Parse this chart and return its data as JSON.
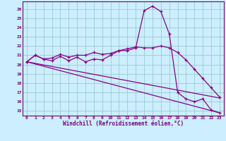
{
  "xlabel": "Windchill (Refroidissement éolien,°C)",
  "bg_color": "#cceeff",
  "grid_color": "#99cccc",
  "line_color": "#880088",
  "xlim": [
    -0.5,
    23.5
  ],
  "ylim": [
    14.5,
    26.8
  ],
  "xtick_labels": [
    "0",
    "1",
    "2",
    "3",
    "4",
    "5",
    "6",
    "7",
    "8",
    "9",
    "10",
    "11",
    "12",
    "13",
    "14",
    "15",
    "16",
    "17",
    "18",
    "19",
    "20",
    "21",
    "22",
    "23"
  ],
  "ytick_labels": [
    "15",
    "16",
    "17",
    "18",
    "19",
    "20",
    "21",
    "22",
    "23",
    "24",
    "25",
    "26"
  ],
  "curve1_x": [
    0,
    1,
    2,
    3,
    4,
    5,
    6,
    7,
    8,
    9,
    10,
    11,
    12,
    13,
    14,
    15,
    16,
    17,
    18,
    19,
    20,
    21,
    22,
    23
  ],
  "curve1_y": [
    20.3,
    21.0,
    20.6,
    20.4,
    20.9,
    20.4,
    20.8,
    20.3,
    20.6,
    20.5,
    21.0,
    21.5,
    21.5,
    21.8,
    25.8,
    26.3,
    25.7,
    23.3,
    17.0,
    16.3,
    16.0,
    16.3,
    15.1,
    14.8
  ],
  "curve2_x": [
    0,
    1,
    2,
    3,
    4,
    5,
    6,
    7,
    8,
    9,
    10,
    11,
    12,
    13,
    14,
    15,
    16,
    17,
    18,
    19,
    20,
    21,
    22,
    23
  ],
  "curve2_y": [
    20.3,
    21.0,
    20.6,
    20.7,
    21.1,
    20.8,
    21.0,
    21.0,
    21.3,
    21.1,
    21.2,
    21.5,
    21.7,
    21.9,
    21.8,
    21.8,
    22.0,
    21.8,
    21.3,
    20.5,
    19.5,
    18.5,
    17.5,
    16.5
  ],
  "curve3_x": [
    0,
    23
  ],
  "curve3_y": [
    20.3,
    14.8
  ],
  "curve4_x": [
    0,
    23
  ],
  "curve4_y": [
    20.3,
    16.4
  ]
}
